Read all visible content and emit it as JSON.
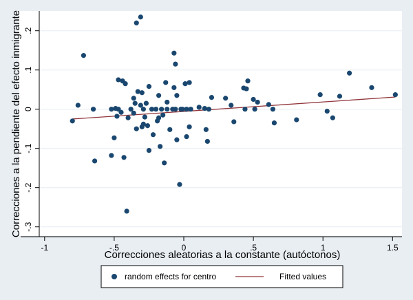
{
  "chart_data": {
    "type": "scatter",
    "xlabel": "Correcciones aleatorias a la constante (autóctonos)",
    "ylabel": "Correcciones a la pendiente del efecto inmigrante",
    "xlim": [
      -1.02,
      1.55
    ],
    "ylim": [
      -0.31,
      0.25
    ],
    "x_ticks": [
      -1,
      -0.5,
      0,
      0.5,
      1,
      1.5
    ],
    "x_tick_labels": [
      "-1",
      "-.5",
      "0",
      ".5",
      "1",
      "1.5"
    ],
    "y_ticks": [
      -0.3,
      -0.2,
      -0.1,
      0,
      0.1,
      0.2
    ],
    "y_tick_labels": [
      "-.3",
      "-.2",
      "-.1",
      "0",
      ".1",
      ".2"
    ],
    "grid": "horizontal",
    "legend_position": "bottom",
    "colors": {
      "background": "#e9eef3",
      "plot_area": "#ffffff",
      "gridline": "#e5ecf1",
      "points": "#1a476f",
      "fitted_line": "#90353b"
    },
    "series": [
      {
        "name": "random effects for centro",
        "kind": "scatter",
        "points": [
          [
            -0.8,
            -0.03
          ],
          [
            -0.76,
            0.01
          ],
          [
            -0.72,
            0.137
          ],
          [
            -0.65,
            0.0
          ],
          [
            -0.64,
            -0.132
          ],
          [
            -0.52,
            0.0
          ],
          [
            -0.52,
            -0.118
          ],
          [
            -0.5,
            -0.073
          ],
          [
            -0.49,
            0.002
          ],
          [
            -0.48,
            -0.018
          ],
          [
            -0.47,
            0.0
          ],
          [
            -0.47,
            0.075
          ],
          [
            -0.45,
            -0.008
          ],
          [
            -0.44,
            0.072
          ],
          [
            -0.43,
            -0.123
          ],
          [
            -0.42,
            0.065
          ],
          [
            -0.41,
            -0.26
          ],
          [
            -0.4,
            -0.022
          ],
          [
            -0.38,
            0.0
          ],
          [
            -0.36,
            0.028
          ],
          [
            -0.36,
            -0.01
          ],
          [
            -0.35,
            0.015
          ],
          [
            -0.34,
            0.22
          ],
          [
            -0.34,
            -0.05
          ],
          [
            -0.33,
            0.045
          ],
          [
            -0.31,
            0.235
          ],
          [
            -0.31,
            0.01
          ],
          [
            -0.3,
            0.042
          ],
          [
            -0.3,
            -0.045
          ],
          [
            -0.29,
            -0.038
          ],
          [
            -0.29,
            0.0
          ],
          [
            -0.28,
            -0.02
          ],
          [
            -0.27,
            0.015
          ],
          [
            -0.26,
            -0.042
          ],
          [
            -0.25,
            0.058
          ],
          [
            -0.25,
            -0.105
          ],
          [
            -0.23,
            0.0
          ],
          [
            -0.22,
            -0.065
          ],
          [
            -0.2,
            0.0
          ],
          [
            -0.19,
            -0.03
          ],
          [
            -0.18,
            0.035
          ],
          [
            -0.18,
            -0.022
          ],
          [
            -0.17,
            -0.095
          ],
          [
            -0.16,
            0.0
          ],
          [
            -0.15,
            -0.015
          ],
          [
            -0.14,
            -0.137
          ],
          [
            -0.13,
            0.068
          ],
          [
            -0.12,
            0.018
          ],
          [
            -0.12,
            0.0
          ],
          [
            -0.1,
            -0.052
          ],
          [
            -0.08,
            0.0
          ],
          [
            -0.07,
            0.143
          ],
          [
            -0.07,
            0.055
          ],
          [
            -0.06,
            0.115
          ],
          [
            -0.06,
            0.0
          ],
          [
            -0.05,
            0.035
          ],
          [
            -0.05,
            -0.078
          ],
          [
            -0.03,
            -0.192
          ],
          [
            -0.02,
            0.0
          ],
          [
            -0.01,
            0.0
          ],
          [
            0.01,
            0.065
          ],
          [
            0.02,
            0.0
          ],
          [
            0.02,
            -0.07
          ],
          [
            0.04,
            0.068
          ],
          [
            0.04,
            -0.045
          ],
          [
            0.05,
            0.0
          ],
          [
            0.11,
            0.005
          ],
          [
            0.15,
            0.002
          ],
          [
            0.16,
            -0.052
          ],
          [
            0.17,
            -0.082
          ],
          [
            0.18,
            0.0
          ],
          [
            0.2,
            0.03
          ],
          [
            0.3,
            0.028
          ],
          [
            0.34,
            0.01
          ],
          [
            0.36,
            -0.032
          ],
          [
            0.43,
            0.054
          ],
          [
            0.44,
            0.0
          ],
          [
            0.45,
            0.052
          ],
          [
            0.46,
            0.072
          ],
          [
            0.5,
            0.025
          ],
          [
            0.51,
            0.0
          ],
          [
            0.53,
            0.018
          ],
          [
            0.61,
            0.012
          ],
          [
            0.64,
            0.0
          ],
          [
            0.65,
            -0.035
          ],
          [
            0.81,
            -0.027
          ],
          [
            0.98,
            0.037
          ],
          [
            1.03,
            -0.005
          ],
          [
            1.07,
            -0.022
          ],
          [
            1.12,
            0.033
          ],
          [
            1.19,
            0.092
          ],
          [
            1.35,
            0.055
          ],
          [
            1.52,
            0.037
          ]
        ]
      },
      {
        "name": "Fitted values",
        "kind": "line",
        "points": [
          [
            -0.8,
            -0.025
          ],
          [
            1.52,
            0.031
          ]
        ]
      }
    ]
  }
}
